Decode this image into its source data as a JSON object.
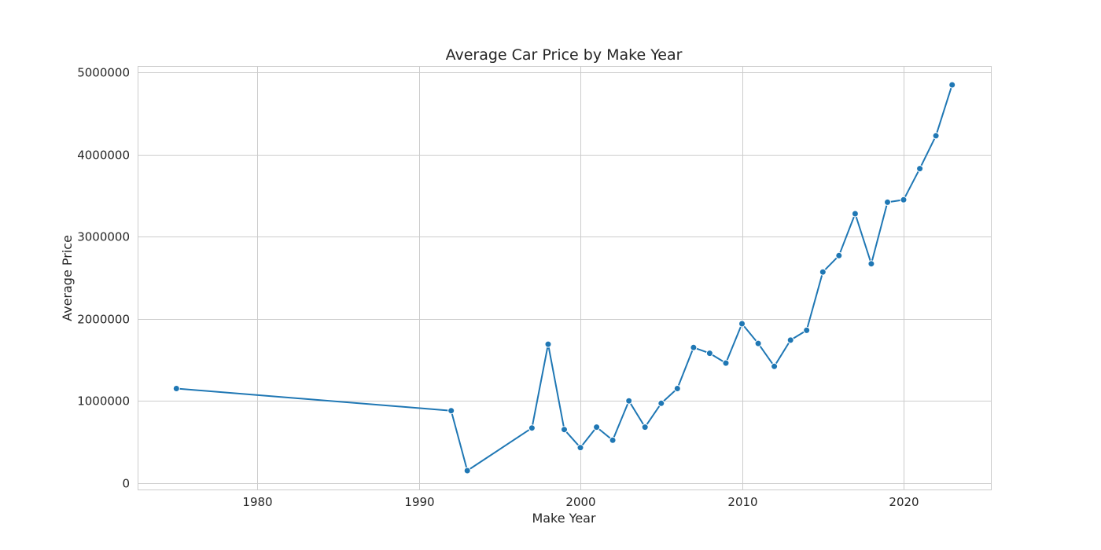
{
  "chart_data": {
    "type": "line",
    "title": "Average Car Price by Make Year",
    "xlabel": "Make Year",
    "ylabel": "Average Price",
    "xlim": [
      1972.6,
      2025.4
    ],
    "ylim": [
      -80000,
      5080000
    ],
    "x_ticks": [
      1980,
      1990,
      2000,
      2010,
      2020
    ],
    "y_ticks": [
      0,
      1000000,
      2000000,
      3000000,
      4000000,
      5000000
    ],
    "x_tick_labels": [
      "1980",
      "1990",
      "2000",
      "2010",
      "2020"
    ],
    "y_tick_labels": [
      "0",
      "1000000",
      "2000000",
      "3000000",
      "4000000",
      "5000000"
    ],
    "grid": true,
    "markers": true,
    "series": [
      {
        "color": "#1f77b4",
        "x": [
          1975,
          1992,
          1993,
          1997,
          1998,
          1999,
          2000,
          2001,
          2002,
          2003,
          2004,
          2005,
          2006,
          2007,
          2008,
          2009,
          2010,
          2011,
          2012,
          2013,
          2014,
          2015,
          2016,
          2017,
          2018,
          2019,
          2020,
          2021,
          2022,
          2023
        ],
        "y": [
          1150000,
          880000,
          150000,
          670000,
          1690000,
          650000,
          430000,
          680000,
          520000,
          1000000,
          680000,
          970000,
          1150000,
          1650000,
          1580000,
          1460000,
          1940000,
          1700000,
          1420000,
          1740000,
          1860000,
          2570000,
          2770000,
          3280000,
          2670000,
          3420000,
          3450000,
          3830000,
          4230000,
          4850000
        ]
      }
    ]
  }
}
